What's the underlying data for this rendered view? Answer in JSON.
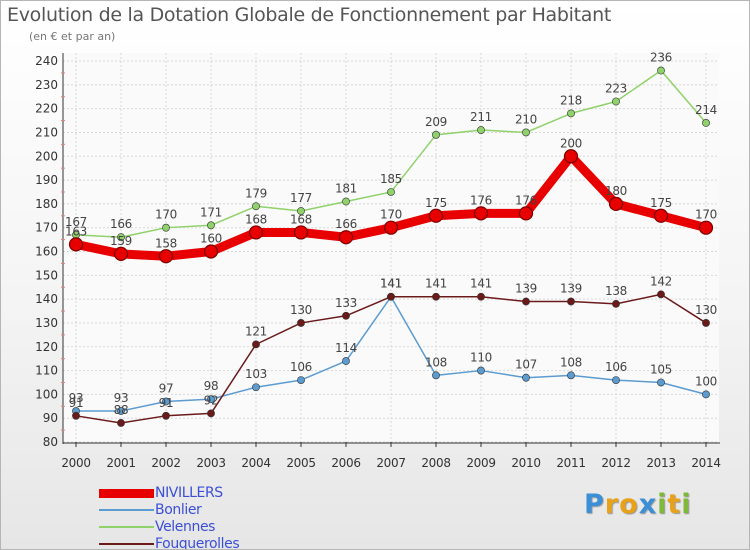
{
  "title": "Evolution de la Dotation Globale de Fonctionnement par Habitant",
  "subtitle": "(en € et par an)",
  "logo": {
    "letters": [
      "P",
      "r",
      "o",
      "x",
      "i",
      "t",
      "i"
    ],
    "colors": [
      "#3a8fd6",
      "#e8a21a",
      "#e8a21a",
      "#3a8fd6",
      "#7fb93a",
      "#e8a21a",
      "#7fb93a"
    ]
  },
  "chart_data": {
    "type": "line",
    "title": "Evolution de la Dotation Globale de Fonctionnement par Habitant",
    "subtitle": "(en € et par an)",
    "x": [
      2000,
      2001,
      2002,
      2003,
      2004,
      2005,
      2006,
      2007,
      2008,
      2009,
      2010,
      2011,
      2012,
      2013,
      2014
    ],
    "ylim": [
      80,
      240
    ],
    "yticks": [
      80,
      90,
      100,
      110,
      120,
      130,
      140,
      150,
      160,
      170,
      180,
      190,
      200,
      210,
      220,
      230,
      240
    ],
    "grid": true,
    "legend_position": "bottom-left",
    "series": [
      {
        "name": "NIVILLERS",
        "color": "#e80000",
        "highlight": true,
        "values": [
          163,
          159,
          158,
          160,
          168,
          168,
          166,
          170,
          175,
          176,
          176,
          200,
          180,
          175,
          170
        ]
      },
      {
        "name": "Bonlier",
        "color": "#5b9bd0",
        "highlight": false,
        "values": [
          93,
          93,
          97,
          98,
          103,
          106,
          114,
          141,
          108,
          110,
          107,
          108,
          106,
          105,
          100
        ]
      },
      {
        "name": "Velennes",
        "color": "#8fd16a",
        "highlight": false,
        "values": [
          167,
          166,
          170,
          171,
          179,
          177,
          181,
          185,
          209,
          211,
          210,
          218,
          223,
          236,
          214
        ]
      },
      {
        "name": "Fouquerolles",
        "color": "#6b1a1a",
        "highlight": false,
        "values": [
          91,
          88,
          91,
          92,
          121,
          130,
          133,
          141,
          141,
          141,
          139,
          139,
          138,
          142,
          130
        ]
      }
    ]
  }
}
